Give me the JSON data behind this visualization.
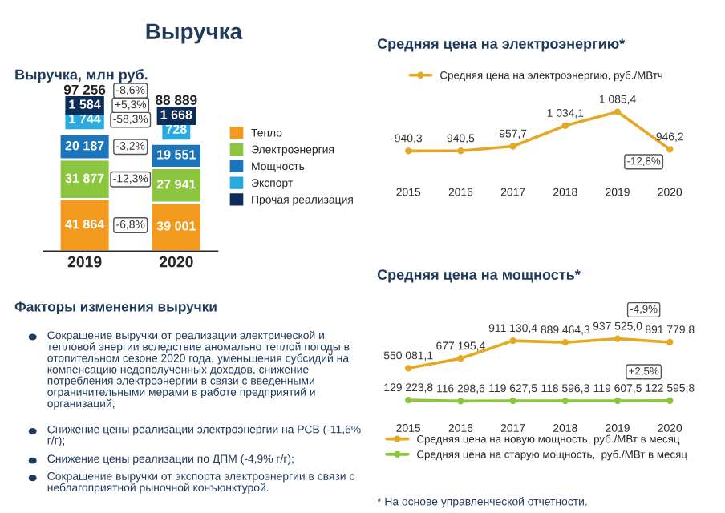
{
  "chart_data": [
    {
      "type": "other",
      "title": "Выручка"
    },
    {
      "type": "bar",
      "title": "Выручка, млн руб.",
      "categories": [
        "2019",
        "2020"
      ],
      "stacked": true,
      "legend": "right",
      "totals": [
        "97 256",
        "88 889"
      ],
      "series": [
        {
          "name": "Тепло",
          "color": "#f39a1e",
          "values": [
            41864,
            39001
          ],
          "value_labels": [
            "41 864",
            "39 001"
          ]
        },
        {
          "name": "Электроэнергия",
          "color": "#8cc63f",
          "values": [
            31877,
            27941
          ],
          "value_labels": [
            "31 877",
            "27 941"
          ]
        },
        {
          "name": "Мощность",
          "color": "#1b75bb",
          "values": [
            20187,
            19551
          ],
          "value_labels": [
            "20 187",
            "19 551"
          ]
        },
        {
          "name": "Экспорт",
          "color": "#29abe2",
          "values": [
            1744,
            728
          ],
          "value_labels": [
            "1 744",
            "728"
          ]
        },
        {
          "name": "Прочая реализация",
          "color": "#0c2d57",
          "values": [
            1584,
            1668
          ],
          "value_labels": [
            "1 584",
            "1 668"
          ]
        }
      ],
      "annotations": [
        "-8,6%",
        "+5,3%",
        "-58,3%",
        "-3,2%",
        "-12,3%",
        "-6,8%"
      ]
    },
    {
      "type": "line",
      "title": "Средняя цена на электроэнергию*",
      "categories": [
        "2015",
        "2016",
        "2017",
        "2018",
        "2019",
        "2020"
      ],
      "legend": "top",
      "marker": "circle",
      "series": [
        {
          "name": "Средняя цена на электроэнергию, руб./МВтч",
          "color": "#e3a922",
          "values": [
            940.3,
            940.5,
            957.7,
            1034.1,
            1085.4,
            946.2
          ],
          "value_labels": [
            "940,3",
            "940,5",
            "957,7",
            "1 034,1",
            "1 085,4",
            "946,2"
          ]
        }
      ],
      "annotations": [
        "-12,8%"
      ]
    },
    {
      "type": "other",
      "title": "Факторы изменения выручки",
      "annotations": [
        "Сокращение выручки от реализации электрической и тепловой энергии вследствие аномально теплой погоды в отопительном сезоне 2020 года, уменьшения субсидий на компенсацию недополученных доходов, снижение потребления электроэнергии в связи с введенными ограничительными мерами в работе предприятий и организаций;",
        "Снижение цены реализации электроэнергии на РСВ (-11,6% г/г);",
        "Снижение цены реализации по ДПМ (-4,9% г/г);",
        "Сокращение выручки от экспорта электроэнергии в связи с неблагоприятной рыночной конъюнктурой."
      ]
    },
    {
      "type": "line",
      "title": "Средняя цена на мощность*",
      "categories": [
        "2015",
        "2016",
        "2017",
        "2018",
        "2019",
        "2020"
      ],
      "legend": "bottom",
      "marker": "circle",
      "series": [
        {
          "name": "Средняя цена на новую мощность, руб./МВт в месяц",
          "color": "#e3a922",
          "values": [
            550081.1,
            677195.4,
            911130.4,
            889464.3,
            937525.0,
            891779.8
          ],
          "value_labels": [
            "550 081,1",
            "677 195,4",
            "911 130,4",
            "889 464,3",
            "937 525,0",
            "891 779,8"
          ]
        },
        {
          "name": "Средняя цена на старую мощность,  руб./МВт в месяц",
          "color": "#8cc63f",
          "values": [
            129223.8,
            116298.6,
            119627.5,
            118596.3,
            119607.5,
            122595.8
          ],
          "value_labels": [
            "129 223,8",
            "116 298,6",
            "119 627,5",
            "118 596,3",
            "119 607,5",
            "122 595,8"
          ]
        }
      ],
      "annotations": [
        "-4,9%",
        "+2,5%",
        "* На основе управленческой отчетности."
      ]
    }
  ]
}
